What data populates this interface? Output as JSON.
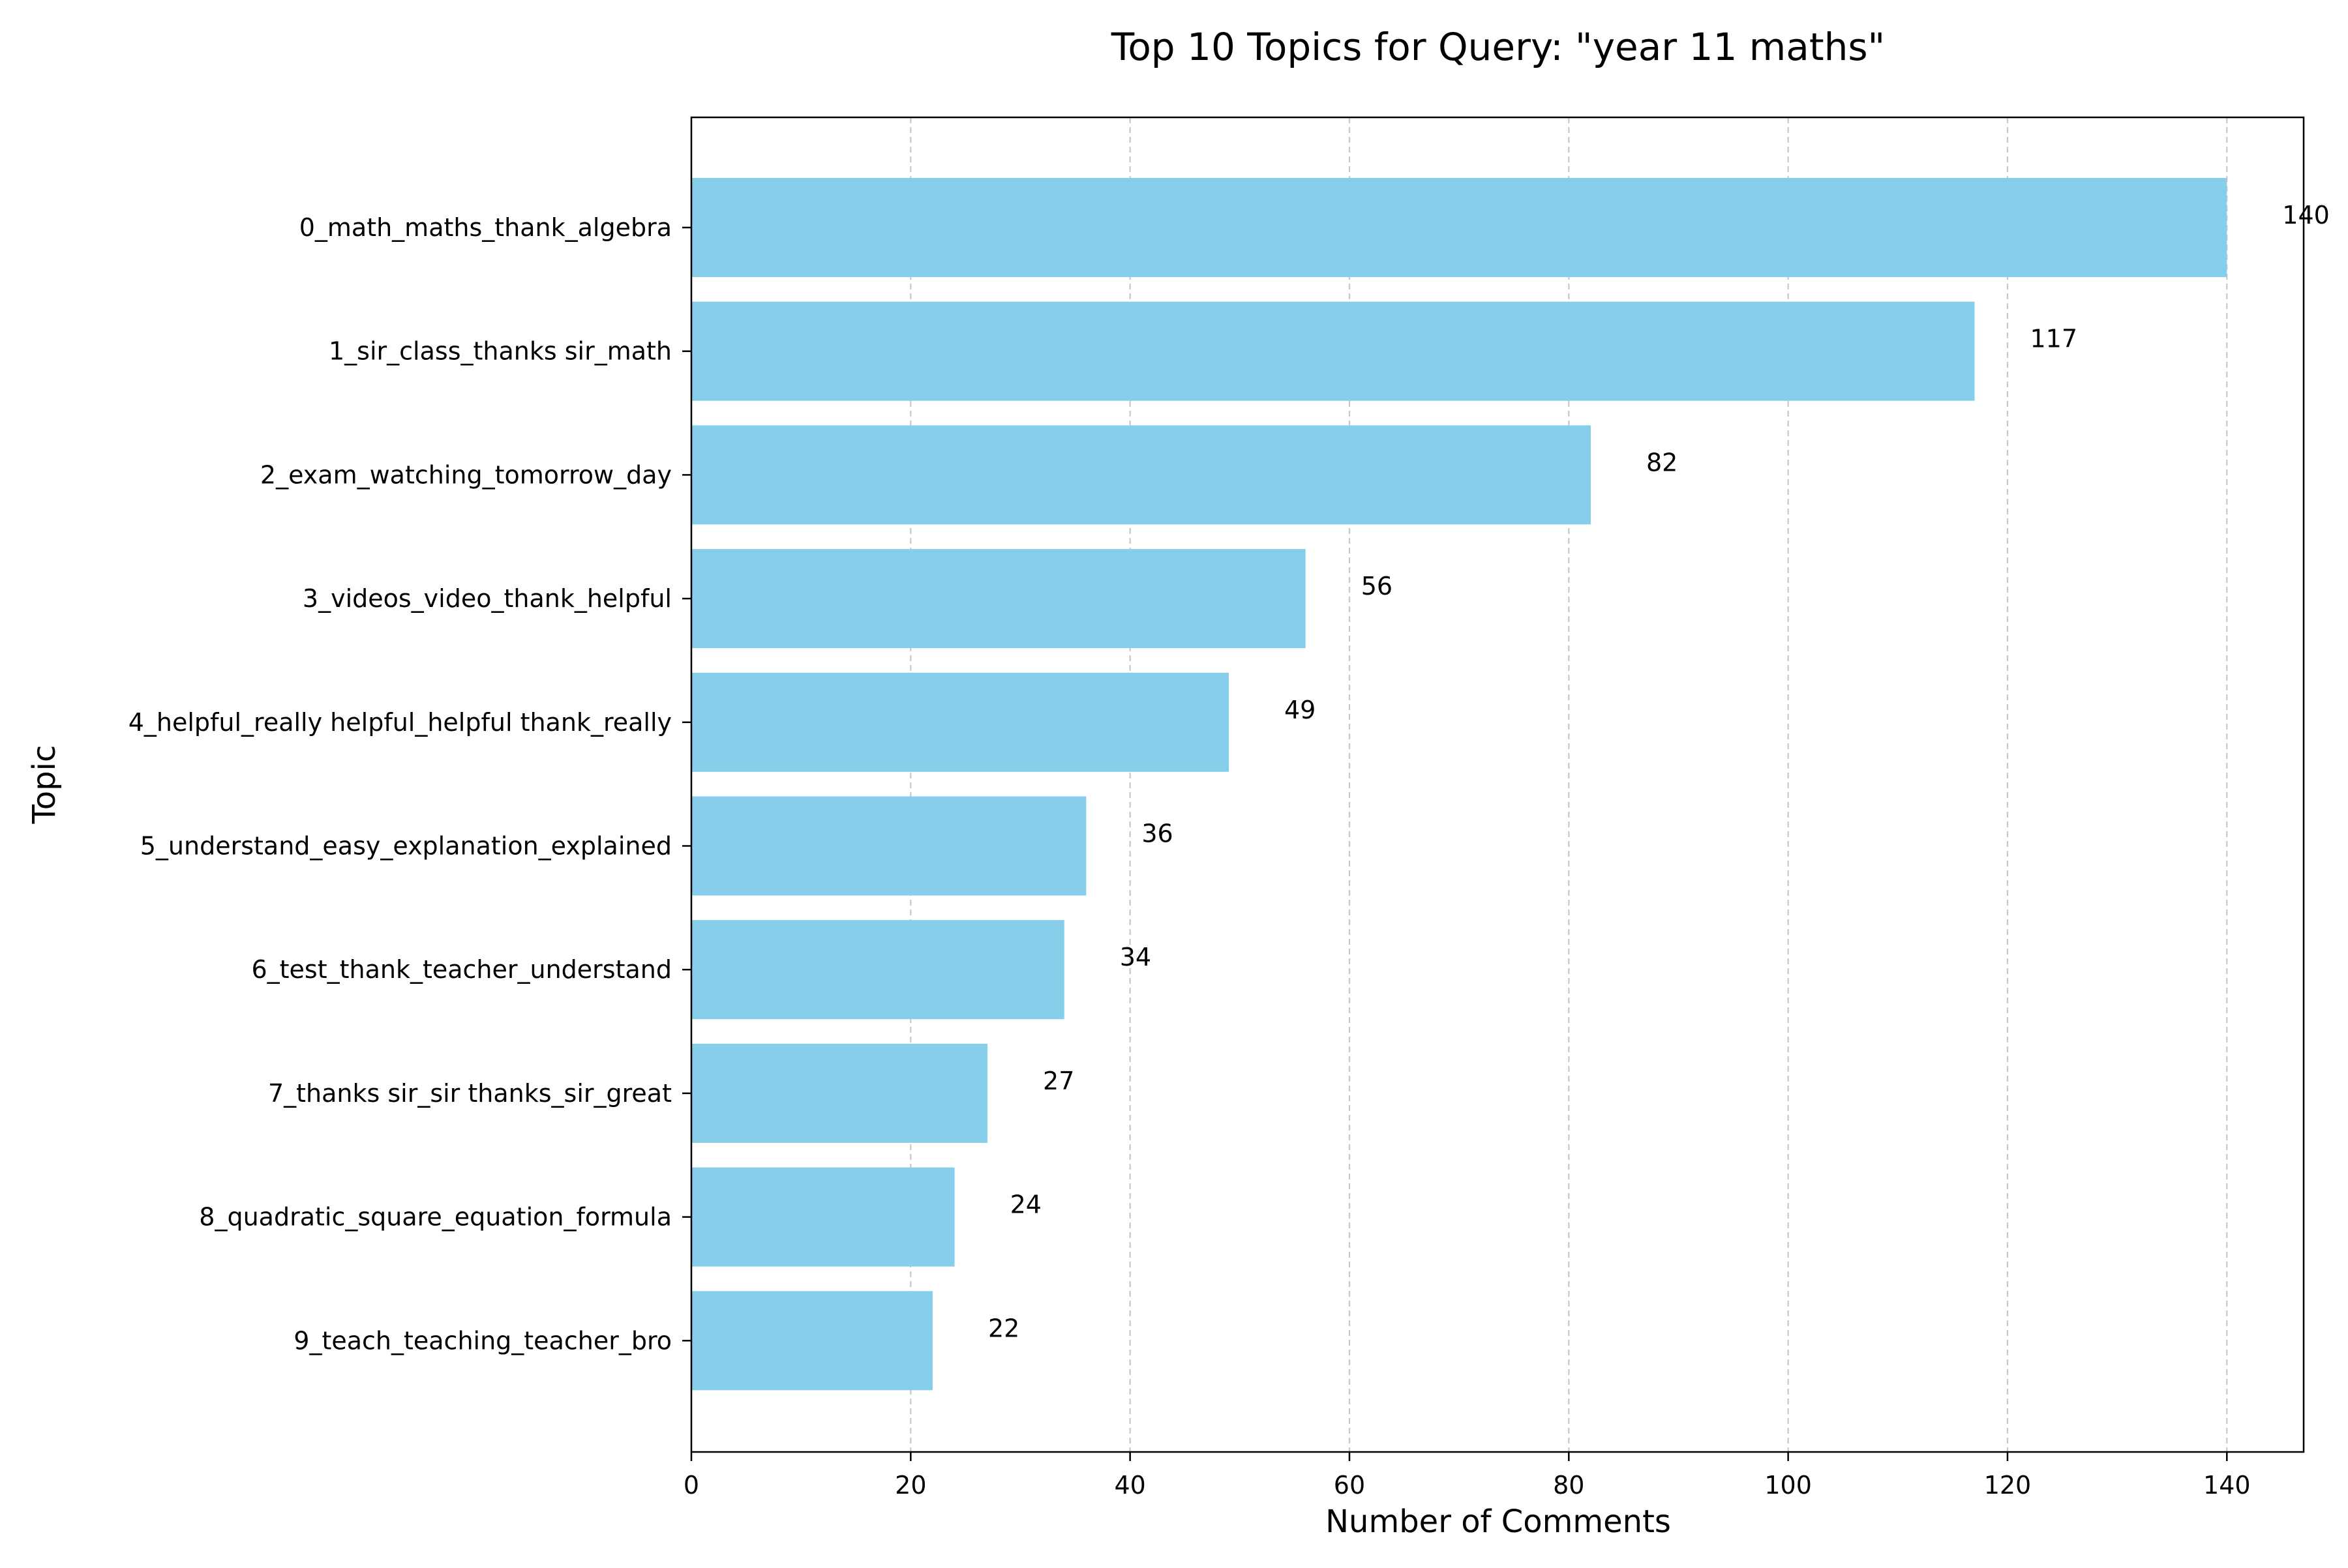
{
  "chart_data": {
    "type": "bar",
    "orientation": "horizontal",
    "title": "Top 10 Topics for Query: \"year 11 maths\"",
    "xlabel": "Number of Comments",
    "ylabel": "Topic",
    "categories": [
      "0_math_maths_thank_algebra",
      "1_sir_class_thanks sir_math",
      "2_exam_watching_tomorrow_day",
      "3_videos_video_thank_helpful",
      "4_helpful_really helpful_helpful thank_really",
      "5_understand_easy_explanation_explained",
      "6_test_thank_teacher_understand",
      "7_thanks sir_sir thanks_sir_great",
      "8_quadratic_square_equation_formula",
      "9_teach_teaching_teacher_bro"
    ],
    "values": [
      140,
      117,
      82,
      56,
      49,
      36,
      34,
      27,
      24,
      22
    ],
    "data_labels": [
      "140",
      "117",
      "82",
      "56",
      "49",
      "36",
      "34",
      "27",
      "24",
      "22"
    ],
    "xlim": [
      0,
      147
    ],
    "xticks": [
      0,
      20,
      40,
      60,
      80,
      100,
      120,
      140
    ],
    "xtick_labels": [
      "0",
      "20",
      "40",
      "60",
      "80",
      "100",
      "120",
      "140"
    ],
    "grid": "x-dashed",
    "bar_color": "#87ceeb",
    "grid_color": "#c8c8c8",
    "axis_color": "#000000"
  }
}
